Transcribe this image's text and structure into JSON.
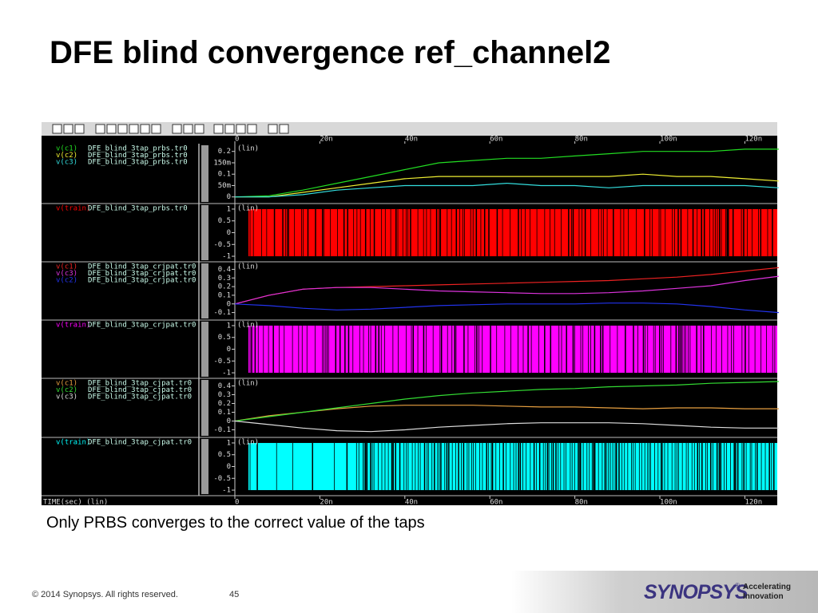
{
  "title": "DFE blind convergence ref_channel2",
  "caption": "Only PRBS converges to the correct value of the taps",
  "footer": {
    "copyright": "© 2014 Synopsys. All rights reserved.",
    "page": "45",
    "logo": "SYNOPSYS",
    "logo_mark": "®",
    "tagline": [
      "Accelerating",
      "Innovation"
    ]
  },
  "viewer": {
    "x_axis_label": "TIME(sec) (lin)",
    "xlim": [
      0,
      128
    ],
    "xticks": [
      {
        "value": 0,
        "label": "0"
      },
      {
        "value": 20,
        "label": "20n"
      },
      {
        "value": 40,
        "label": "40n"
      },
      {
        "value": 60,
        "label": "60n"
      },
      {
        "value": 80,
        "label": "80n"
      },
      {
        "value": 100,
        "label": "100n"
      },
      {
        "value": 120,
        "label": "120n"
      }
    ],
    "x": [
      0,
      8,
      16,
      24,
      32,
      40,
      48,
      56,
      64,
      72,
      80,
      88,
      96,
      104,
      112,
      120,
      128
    ],
    "panels": [
      {
        "scale_label": "(lin)",
        "ylim": [
          -0.015,
          0.22
        ],
        "yticks": [
          0.2,
          {
            "value": 0.15,
            "label": "150m"
          },
          0.1,
          {
            "value": 0.05,
            "label": "50m"
          },
          0
        ],
        "series": [
          {
            "name": "v(c1)",
            "file": "DFE_blind_3tap_prbs.tr0",
            "color": "#22dd22",
            "values": [
              0,
              0.005,
              0.03,
              0.06,
              0.09,
              0.12,
              0.15,
              0.16,
              0.17,
              0.17,
              0.18,
              0.19,
              0.2,
              0.2,
              0.2,
              0.21,
              0.21
            ]
          },
          {
            "name": "v(c2)",
            "file": "DFE_blind_3tap_prbs.tr0",
            "color": "#eeee33",
            "values": [
              0,
              0,
              0.02,
              0.04,
              0.06,
              0.08,
              0.09,
              0.09,
              0.09,
              0.09,
              0.09,
              0.09,
              0.1,
              0.09,
              0.09,
              0.08,
              0.07
            ]
          },
          {
            "name": "v(c3)",
            "file": "DFE_blind_3tap_prbs.tr0",
            "color": "#33dddd",
            "values": [
              0,
              0,
              0.01,
              0.03,
              0.04,
              0.05,
              0.05,
              0.05,
              0.06,
              0.05,
              0.05,
              0.04,
              0.05,
              0.05,
              0.05,
              0.05,
              0.04
            ]
          }
        ]
      },
      {
        "scale_label": "(lin)",
        "ylim": [
          -1.1,
          1.1
        ],
        "yticks": [
          1,
          0.5,
          0,
          -0.5,
          -1
        ],
        "series": [
          {
            "name": "v(train)",
            "file": "DFE_blind_3tap_prbs.tr0",
            "color": "#ff0000"
          }
        ]
      },
      {
        "scale_label": "(lin)",
        "ylim": [
          -0.15,
          0.45
        ],
        "yticks": [
          0.4,
          0.3,
          0.2,
          0.1,
          0,
          -0.1
        ],
        "series": [
          {
            "name": "v(c1)",
            "file": "DFE_blind_3tap_crjpat.tr0",
            "color": "#ee2222",
            "values": [
              0,
              0.1,
              0.17,
              0.19,
              0.2,
              0.21,
              0.22,
              0.23,
              0.24,
              0.25,
              0.26,
              0.27,
              0.29,
              0.31,
              0.34,
              0.38,
              0.42
            ]
          },
          {
            "name": "v(c3)",
            "file": "DFE_blind_3tap_crjpat.tr0",
            "color": "#dd33dd",
            "values": [
              0,
              0.1,
              0.17,
              0.19,
              0.19,
              0.17,
              0.15,
              0.14,
              0.13,
              0.12,
              0.12,
              0.13,
              0.15,
              0.18,
              0.21,
              0.27,
              0.32
            ]
          },
          {
            "name": "v(c2)",
            "file": "DFE_blind_3tap_crjpat.tr0",
            "color": "#2233ee",
            "values": [
              0,
              -0.02,
              -0.05,
              -0.07,
              -0.06,
              -0.04,
              -0.02,
              -0.01,
              0,
              0,
              0,
              0.01,
              0.01,
              0,
              -0.03,
              -0.07,
              -0.1
            ]
          }
        ]
      },
      {
        "scale_label": "(lin)",
        "ylim": [
          -1.1,
          1.1
        ],
        "yticks": [
          1,
          0.5,
          0,
          -0.5,
          -1
        ],
        "series": [
          {
            "name": "v(train)",
            "file": "DFE_blind_3tap_crjpat.tr0",
            "color": "#ff00ff"
          }
        ]
      },
      {
        "scale_label": "(lin)",
        "ylim": [
          -0.15,
          0.45
        ],
        "yticks": [
          0.4,
          0.3,
          0.2,
          0.1,
          0,
          -0.1
        ],
        "series": [
          {
            "name": "v(c1)",
            "file": "DFE_blind_3tap_cjpat.tr0",
            "color": "#e8a040",
            "values": [
              0,
              0.06,
              0.1,
              0.14,
              0.17,
              0.18,
              0.18,
              0.18,
              0.17,
              0.16,
              0.16,
              0.15,
              0.14,
              0.15,
              0.15,
              0.14,
              0.14
            ]
          },
          {
            "name": "v(c2)",
            "file": "DFE_blind_3tap_cjpat.tr0",
            "color": "#33dd33",
            "values": [
              0,
              0.05,
              0.1,
              0.15,
              0.2,
              0.25,
              0.29,
              0.32,
              0.34,
              0.36,
              0.37,
              0.39,
              0.4,
              0.41,
              0.43,
              0.44,
              0.45
            ]
          },
          {
            "name": "v(c3)",
            "file": "DFE_blind_3tap_cjpat.tr0",
            "color": "#dddddd",
            "values": [
              0,
              -0.04,
              -0.08,
              -0.11,
              -0.12,
              -0.1,
              -0.07,
              -0.05,
              -0.03,
              -0.02,
              -0.02,
              -0.02,
              -0.03,
              -0.05,
              -0.07,
              -0.08,
              -0.08
            ]
          }
        ]
      },
      {
        "scale_label": "(lin)",
        "ylim": [
          -1.1,
          1.1
        ],
        "yticks": [
          1,
          0.5,
          0,
          -0.5,
          -1
        ],
        "series": [
          {
            "name": "v(train)",
            "file": "DFE_blind_3tap_cjpat.tr0",
            "color": "#00ffff"
          }
        ]
      }
    ]
  }
}
